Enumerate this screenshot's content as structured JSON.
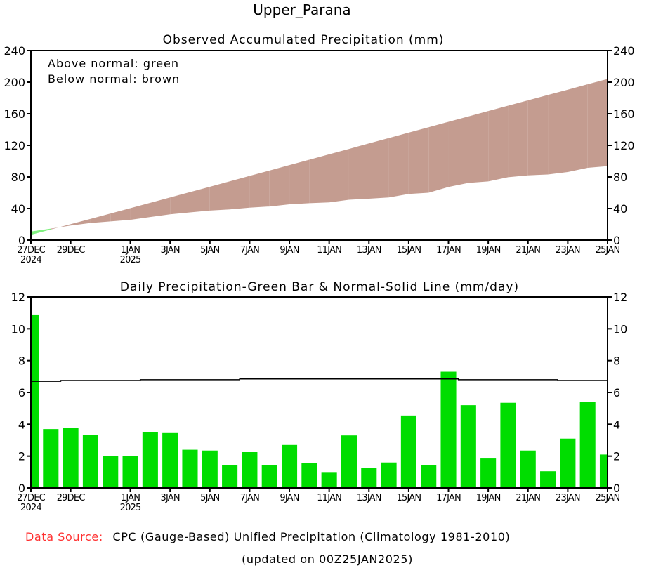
{
  "title": "Upper_Parana",
  "colors": {
    "above_normal": "#80f080",
    "below_normal": "#c49c90",
    "bar": "#00dd00",
    "normal_line": "#000000",
    "source_label": "#ff3030"
  },
  "chart_data": [
    {
      "type": "area",
      "title": "Observed Accumulated Precipitation (mm)",
      "legend_lines": [
        "Above normal: green",
        "Below normal: brown"
      ],
      "legend_placement": "top-left",
      "ylim": [
        0,
        240
      ],
      "yticks": [
        0,
        40,
        80,
        120,
        160,
        200,
        240
      ],
      "xticks": [
        {
          "label": "27DEC",
          "sub": "2024",
          "day": 0
        },
        {
          "label": "29DEC",
          "day": 2
        },
        {
          "label": "1JAN",
          "sub": "2025",
          "day": 5
        },
        {
          "label": "3JAN",
          "day": 7
        },
        {
          "label": "5JAN",
          "day": 9
        },
        {
          "label": "7JAN",
          "day": 11
        },
        {
          "label": "9JAN",
          "day": 13
        },
        {
          "label": "11JAN",
          "day": 15
        },
        {
          "label": "13JAN",
          "day": 17
        },
        {
          "label": "15JAN",
          "day": 19
        },
        {
          "label": "17JAN",
          "day": 21
        },
        {
          "label": "19JAN",
          "day": 23
        },
        {
          "label": "21JAN",
          "day": 25
        },
        {
          "label": "23JAN",
          "day": 27
        },
        {
          "label": "25JAN",
          "day": 29
        }
      ],
      "grid": false,
      "series": [
        {
          "name": "observed",
          "values": [
            10.9,
            14.6,
            18.4,
            21.7,
            23.7,
            25.7,
            29.2,
            32.7,
            35.1,
            37.4,
            38.9,
            41.1,
            42.6,
            45.3,
            46.8,
            47.8,
            51.1,
            52.4,
            54.0,
            58.5,
            60.0,
            67.3,
            72.5,
            74.3,
            79.7,
            82.0,
            83.1,
            86.2,
            91.6,
            93.7
          ]
        },
        {
          "name": "normal",
          "values": [
            6.7,
            13.4,
            20.2,
            26.9,
            33.7,
            40.4,
            47.2,
            54.0,
            60.8,
            67.6,
            74.4,
            81.3,
            88.1,
            95.0,
            101.8,
            108.7,
            115.5,
            122.4,
            129.2,
            136.1,
            142.9,
            149.8,
            156.6,
            163.4,
            170.2,
            177.0,
            183.8,
            190.5,
            197.3,
            204.0
          ]
        }
      ]
    },
    {
      "type": "bar",
      "title": "Daily Precipitation-Green Bar & Normal-Solid Line (mm/day)",
      "ylim": [
        0,
        12
      ],
      "yticks": [
        0,
        2,
        4,
        6,
        8,
        10,
        12
      ],
      "grid": false,
      "dates": [
        "27DEC",
        "28DEC",
        "29DEC",
        "30DEC",
        "31DEC",
        "1JAN",
        "2JAN",
        "3JAN",
        "4JAN",
        "5JAN",
        "6JAN",
        "7JAN",
        "8JAN",
        "9JAN",
        "10JAN",
        "11JAN",
        "12JAN",
        "13JAN",
        "14JAN",
        "15JAN",
        "16JAN",
        "17JAN",
        "18JAN",
        "19JAN",
        "20JAN",
        "21JAN",
        "22JAN",
        "23JAN",
        "24JAN",
        "25JAN"
      ],
      "values": [
        10.9,
        3.7,
        3.75,
        3.35,
        2.0,
        2.0,
        3.5,
        3.45,
        2.4,
        2.35,
        1.45,
        2.25,
        1.45,
        2.7,
        1.55,
        1.0,
        3.3,
        1.25,
        1.6,
        4.55,
        1.45,
        7.3,
        5.2,
        1.85,
        5.35,
        2.35,
        1.05,
        3.1,
        5.4,
        2.1
      ],
      "normal": [
        6.7,
        6.7,
        6.75,
        6.75,
        6.75,
        6.75,
        6.8,
        6.8,
        6.8,
        6.8,
        6.8,
        6.85,
        6.85,
        6.85,
        6.85,
        6.85,
        6.85,
        6.85,
        6.85,
        6.85,
        6.85,
        6.85,
        6.8,
        6.8,
        6.8,
        6.8,
        6.8,
        6.75,
        6.75,
        6.75
      ]
    }
  ],
  "footer": {
    "source_label": "Data Source:",
    "source_text": "CPC (Gauge-Based) Unified Precipitation (Climatology 1981-2010)",
    "updated": "(updated on 00Z25JAN2025)"
  }
}
